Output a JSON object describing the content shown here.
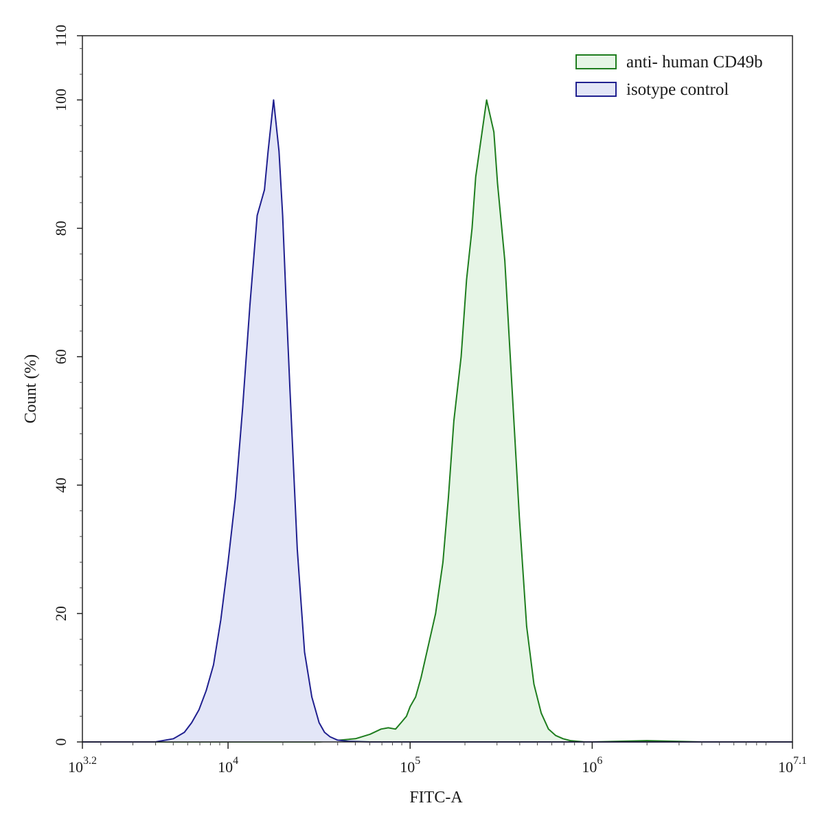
{
  "chart_data": {
    "type": "area",
    "title": "",
    "xlabel": "FITC-A",
    "ylabel": "Count  (%)",
    "x_scale": "log10",
    "xlim_log10": [
      3.2,
      7.1
    ],
    "ylim": [
      0,
      110
    ],
    "x_ticks": [
      {
        "base": "10",
        "exp": "3.2",
        "log10": 3.2
      },
      {
        "base": "10",
        "exp": "4",
        "log10": 4
      },
      {
        "base": "10",
        "exp": "5",
        "log10": 5
      },
      {
        "base": "10",
        "exp": "6",
        "log10": 6
      },
      {
        "base": "10",
        "exp": "7.1",
        "log10": 7.1
      }
    ],
    "y_ticks": [
      "0",
      "20",
      "40",
      "60",
      "80",
      "100",
      "110"
    ],
    "y_tick_values": [
      0,
      20,
      40,
      60,
      80,
      100,
      110
    ],
    "grid": false,
    "legend_position": "top-right",
    "series": [
      {
        "name": "anti- human CD49b",
        "line_color": "#1e7d1e",
        "fill_color": "#e6f5e6",
        "x_log10": [
          3.2,
          4.5,
          4.7,
          4.78,
          4.84,
          4.88,
          4.92,
          4.95,
          4.98,
          5.0,
          5.03,
          5.06,
          5.1,
          5.14,
          5.18,
          5.21,
          5.24,
          5.28,
          5.31,
          5.34,
          5.36,
          5.38,
          5.42,
          5.46,
          5.48,
          5.52,
          5.56,
          5.6,
          5.64,
          5.68,
          5.72,
          5.76,
          5.8,
          5.84,
          5.88,
          5.92,
          5.96,
          6.0,
          6.3,
          6.6,
          7.1
        ],
        "y": [
          0,
          0,
          0.5,
          1.2,
          2,
          2.2,
          2,
          3,
          4,
          5.5,
          7,
          10,
          15,
          20,
          28,
          38,
          50,
          60,
          72,
          80,
          88,
          92,
          100,
          95,
          87,
          75,
          55,
          35,
          18,
          9,
          4.5,
          2,
          1,
          0.5,
          0.2,
          0.1,
          0,
          0,
          0.2,
          0,
          0
        ]
      },
      {
        "name": "isotype control",
        "line_color": "#1f1f8f",
        "fill_color": "#e3e6f7",
        "x_log10": [
          3.2,
          3.6,
          3.7,
          3.76,
          3.8,
          3.84,
          3.88,
          3.92,
          3.96,
          4.0,
          4.04,
          4.08,
          4.12,
          4.16,
          4.2,
          4.22,
          4.25,
          4.28,
          4.3,
          4.32,
          4.34,
          4.38,
          4.42,
          4.46,
          4.5,
          4.53,
          4.56,
          4.6,
          4.66,
          4.72,
          4.78,
          5.0,
          7.1
        ],
        "y": [
          0,
          0,
          0.5,
          1.5,
          3,
          5,
          8,
          12,
          19,
          28,
          38,
          52,
          68,
          82,
          86,
          92,
          100,
          92,
          82,
          68,
          55,
          30,
          14,
          7,
          3,
          1.5,
          0.8,
          0.3,
          0.1,
          0.05,
          0,
          0,
          0
        ]
      }
    ]
  }
}
